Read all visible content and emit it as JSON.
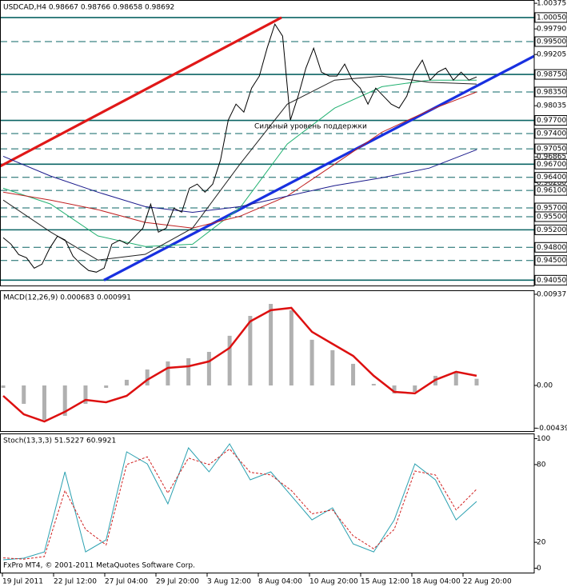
{
  "chart_data": [
    {
      "type": "line",
      "title": "USDCAD,H4  0.98667 0.98766 0.98658 0.98692",
      "ylim": [
        0.9391,
        1.0045
      ],
      "yticks": [
        {
          "value": 1.00375,
          "label": "1.00375"
        },
        {
          "value": 0.9979,
          "label": "0.99790"
        },
        {
          "value": 0.99205,
          "label": "0.99205"
        },
        {
          "value": 0.98035,
          "label": "0.98035"
        },
        {
          "value": 0.96865,
          "label": "0.96865"
        },
        {
          "value": 0.9628,
          "label": "0.96280"
        }
      ],
      "level_color": "#0b6464",
      "levels": [
        {
          "value": 1.0005,
          "label": "1.00050",
          "style": "solid"
        },
        {
          "value": 0.995,
          "label": "0.99500",
          "style": "dashed"
        },
        {
          "value": 0.9875,
          "label": "0.98750",
          "style": "solid"
        },
        {
          "value": 0.9835,
          "label": "0.98350",
          "style": "dashed"
        },
        {
          "value": 0.977,
          "label": "0.97700",
          "style": "solid"
        },
        {
          "value": 0.974,
          "label": "0.97400",
          "style": "dashed"
        },
        {
          "value": 0.9705,
          "label": "0.97050",
          "style": "dashed"
        },
        {
          "value": 0.967,
          "label": "0.96700",
          "style": "solid"
        },
        {
          "value": 0.964,
          "label": "0.96400",
          "style": "dashed"
        },
        {
          "value": 0.961,
          "label": "0.96100",
          "style": "dashed"
        },
        {
          "value": 0.957,
          "label": "0.95700",
          "style": "dashed"
        },
        {
          "value": 0.955,
          "label": "0.95500",
          "style": "dashed"
        },
        {
          "value": 0.952,
          "label": "0.95200",
          "style": "solid"
        },
        {
          "value": 0.948,
          "label": "0.94800",
          "style": "dashed"
        },
        {
          "value": 0.945,
          "label": "0.94500",
          "style": "dashed"
        },
        {
          "value": 0.9405,
          "label": "0.94050",
          "style": "solid"
        }
      ],
      "series": [
        {
          "color": "#20b070",
          "values": [
            0.9615,
            0.9579,
            0.9506,
            0.9482,
            0.9487,
            0.957,
            0.9716,
            0.9798,
            0.9847,
            0.9862,
            0.9862
          ]
        },
        {
          "color": "#c02020",
          "values": [
            0.9606,
            0.9588,
            0.9566,
            0.9537,
            0.9524,
            0.9551,
            0.9597,
            0.967,
            0.9743,
            0.9793,
            0.9835
          ]
        },
        {
          "color": "#1a1a8c",
          "values": [
            0.9688,
            0.9643,
            0.9606,
            0.9573,
            0.956,
            0.9573,
            0.9597,
            0.9621,
            0.9639,
            0.9661,
            0.9703
          ]
        },
        {
          "color": "#222222",
          "values": [
            0.9588,
            0.9515,
            0.9451,
            0.9464,
            0.9524,
            0.967,
            0.9807,
            0.9862,
            0.9871,
            0.9857,
            0.9853
          ]
        },
        {
          "color": "#000000",
          "values": [
            0.95019,
            0.94873,
            0.94635,
            0.94562,
            0.94324,
            0.94416,
            0.94781,
            0.95056,
            0.94964,
            0.94599,
            0.94416,
            0.94269,
            0.94233,
            0.94324,
            0.94873,
            0.94964,
            0.94873,
            0.95056,
            0.95238,
            0.95787,
            0.95147,
            0.95238,
            0.95695,
            0.95604,
            0.96152,
            0.96244,
            0.96061,
            0.96244,
            0.96792,
            0.97706,
            0.98072,
            0.97889,
            0.98437,
            0.98712,
            0.99351,
            0.999,
            0.99625,
            0.97706,
            0.98255,
            0.98894,
            0.99351,
            0.98803,
            0.98712,
            0.98712,
            0.98986,
            0.9862,
            0.98437,
            0.98072,
            0.98437,
            0.98255,
            0.98072,
            0.9798,
            0.98255,
            0.98803,
            0.99077,
            0.9862,
            0.98803,
            0.98894,
            0.9862,
            0.98803,
            0.9862,
            0.98692
          ]
        }
      ],
      "trendlines": [
        {
          "color": "#e01818",
          "values": [
            0.9665,
            1.0005
          ]
        },
        {
          "color": "#1830e0",
          "values": [
            0.9405,
            0.9917
          ]
        }
      ],
      "annotation": "Сильный уровень поддержки",
      "annotation_color": "#2020d0"
    },
    {
      "type": "macd",
      "title": "MACD(12,26,9) 0.000683 0.000991",
      "ylim": [
        -0.00477,
        0.00978
      ],
      "yticks": [
        0.00937,
        {
          "value": 0,
          "label": "0.00"
        },
        -0.00439
      ],
      "series": [
        {
          "style": "histogram",
          "color": "#b0b0b0",
          "values": [
            -0.00025,
            -0.00189,
            -0.00353,
            -0.00312,
            -0.00189,
            -0.00025,
            0.00058,
            0.00164,
            0.00247,
            0.0028,
            0.00345,
            0.0051,
            0.00715,
            0.00838,
            0.00773,
            0.00469,
            0.00362,
            0.00222,
            0.00016,
            -0.00082,
            -0.00066,
            0.00099,
            0.0014,
            0.000683
          ]
        },
        {
          "style": "line",
          "color": "#dd1010",
          "values": [
            -0.00107,
            -0.00296,
            -0.0037,
            -0.00271,
            -0.00148,
            -0.00173,
            -0.00107,
            0.00058,
            0.00181,
            0.00197,
            0.00247,
            0.00386,
            0.00658,
            0.00773,
            0.00797,
            0.00551,
            0.00427,
            0.00304,
            0.00099,
            -0.00066,
            -0.00082,
            0.00058,
            0.0014,
            0.000991
          ]
        }
      ]
    },
    {
      "type": "stochastic",
      "title": "Stoch(13,3,3) 51.5227 60.9921",
      "ylim": [
        -4,
        104
      ],
      "yticks": [
        100,
        80,
        20,
        0
      ],
      "series": [
        {
          "style": "line",
          "color": "#2aa0b0",
          "values": [
            6.5,
            7.7,
            12.6,
            74.4,
            12.6,
            21.9,
            89.8,
            80.5,
            49.7,
            92.9,
            74.4,
            96,
            68.2,
            74.4,
            55.9,
            37.3,
            46.6,
            18.8,
            12.6,
            37.3,
            80.5,
            68.2,
            37.3,
            51.5227
          ]
        },
        {
          "style": "dashed",
          "color": "#d02020",
          "values": [
            8,
            7,
            9,
            60,
            30,
            18,
            80,
            86,
            58,
            85,
            80,
            92,
            74,
            72,
            60,
            42,
            45,
            25,
            15,
            30,
            75,
            72,
            45,
            60.9921
          ]
        }
      ],
      "footer": "FxPro MT4, © 2001-2011 MetaQuotes Software Corp.",
      "x_labels": [
        "19 Jul 2011",
        "22 Jul 12:00",
        "27 Jul 04:00",
        "29 Jul 20:00",
        "3 Aug 12:00",
        "8 Aug 04:00",
        "10 Aug 20:00",
        "15 Aug 12:00",
        "18 Aug 04:00",
        "22 Aug 20:00"
      ]
    }
  ]
}
